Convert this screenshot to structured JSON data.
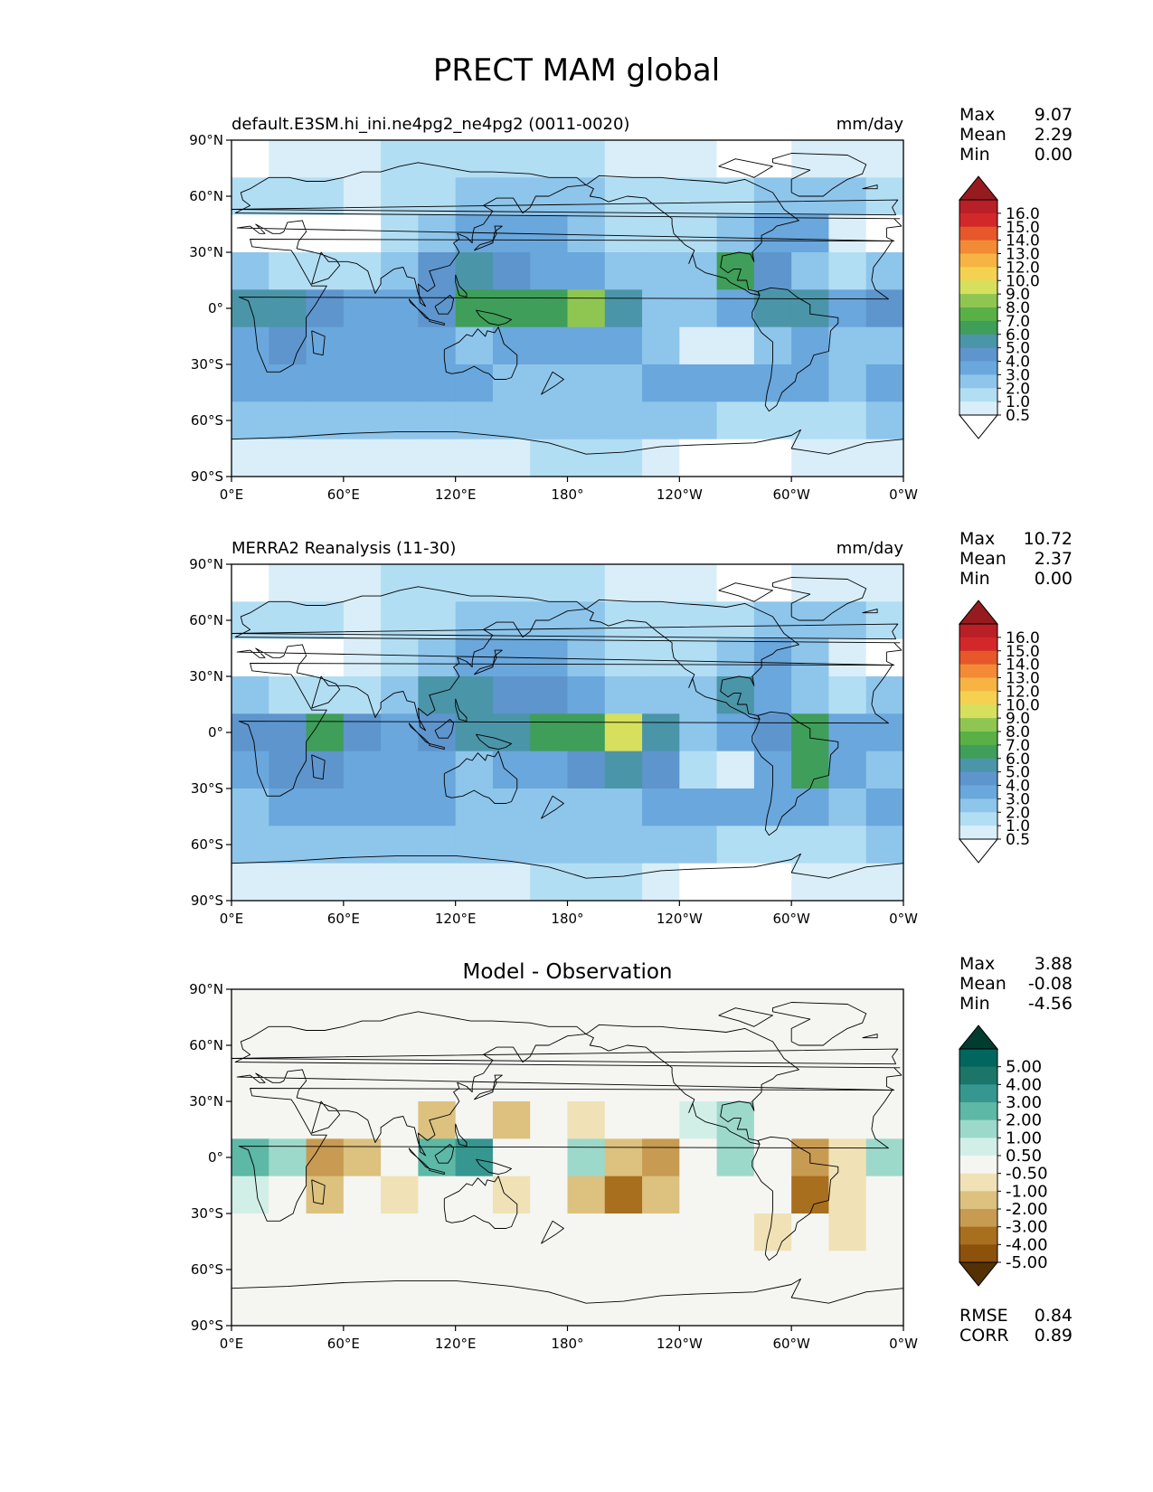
{
  "title": "PRECT MAM global",
  "lon_ticks": [
    "0°E",
    "60°E",
    "120°E",
    "180°",
    "120°W",
    "60°W",
    "0°W"
  ],
  "lat_ticks": [
    "90°N",
    "60°N",
    "30°N",
    "0°",
    "30°S",
    "60°S",
    "90°S"
  ],
  "stat_labels": {
    "max": "Max",
    "mean": "Mean",
    "min": "Min"
  },
  "colors": {
    "land_outline": "#000000",
    "prect_levels": [
      "#ffffff",
      "#d9eef9",
      "#b2def4",
      "#8ec5eb",
      "#6aa7dc",
      "#5e95cd",
      "#4b95a9",
      "#3f9e59",
      "#59b146",
      "#8fc651",
      "#d6e05d",
      "#f5d152",
      "#f7b344",
      "#f38b36",
      "#e6572a",
      "#d3282a",
      "#b91f26",
      "#961b1f"
    ],
    "diff_levels": [
      "#543005",
      "#8c510a",
      "#a86f1e",
      "#c89b52",
      "#dcc17f",
      "#f0e2b6",
      "#f5f5f2",
      "#d2efe7",
      "#9dd9cb",
      "#5db8a6",
      "#35978f",
      "#1b7569",
      "#01665e",
      "#003c30"
    ]
  },
  "panels": [
    {
      "id": "test",
      "label_left": "default.E3SM.hi_ini.ne4pg2_ne4pg2 (0011-0020)",
      "label_right": "mm/day",
      "stats": {
        "max": "9.07",
        "mean": "2.29",
        "min": "0.00"
      },
      "colorbar_labels": [
        "16.0",
        "15.0",
        "14.0",
        "13.0",
        "12.0",
        "10.0",
        "9.0",
        "8.0",
        "7.0",
        "6.0",
        "5.0",
        "4.0",
        "3.0",
        "2.0",
        "1.0",
        "0.5"
      ]
    },
    {
      "id": "ref",
      "label_left": "MERRA2 Reanalysis (11-30)",
      "label_right": "mm/day",
      "stats": {
        "max": "10.72",
        "mean": "2.37",
        "min": "0.00"
      },
      "colorbar_labels": [
        "16.0",
        "15.0",
        "14.0",
        "13.0",
        "12.0",
        "10.0",
        "9.0",
        "8.0",
        "7.0",
        "6.0",
        "5.0",
        "4.0",
        "3.0",
        "2.0",
        "1.0",
        "0.5"
      ]
    },
    {
      "id": "diff",
      "label_center": "Model - Observation",
      "stats": {
        "max": "3.88",
        "mean": "-0.08",
        "min": "-4.56"
      },
      "colorbar_labels": [
        "5.00",
        "4.00",
        "3.00",
        "2.00",
        "1.00",
        "0.50",
        "-0.50",
        "-1.00",
        "-2.00",
        "-3.00",
        "-4.00",
        "-5.00"
      ],
      "metrics": [
        {
          "label": "RMSE",
          "value": "0.84"
        },
        {
          "label": "CORR",
          "value": "0.89"
        }
      ]
    }
  ],
  "chart_data": [
    {
      "type": "heatmap",
      "title": "default.E3SM.hi_ini.ne4pg2_ne4pg2 (0011-0020)",
      "units": "mm/day",
      "xlim": [
        0,
        360
      ],
      "ylim": [
        -90,
        90
      ],
      "levels": [
        0.5,
        1,
        2,
        3,
        4,
        5,
        6,
        7,
        8,
        9,
        10,
        12,
        13,
        14,
        15,
        16
      ],
      "grid_step_deg": 20,
      "lat_centers": [
        80,
        60,
        40,
        20,
        0,
        -20,
        -40,
        -60,
        -80
      ],
      "lon_centers": [
        10,
        30,
        50,
        70,
        90,
        110,
        130,
        150,
        170,
        190,
        210,
        230,
        250,
        270,
        290,
        310,
        330,
        350
      ],
      "values": [
        [
          0.4,
          0.6,
          0.8,
          0.8,
          1.0,
          1.2,
          1.4,
          1.2,
          1.0,
          1.0,
          0.8,
          0.8,
          0.6,
          0.4,
          0.4,
          0.6,
          0.6,
          0.5
        ],
        [
          1.2,
          1.2,
          1.0,
          0.8,
          1.0,
          1.4,
          2.0,
          2.6,
          2.6,
          2.2,
          1.8,
          1.6,
          1.4,
          1.6,
          2.2,
          2.6,
          2.4,
          1.8
        ],
        [
          0.4,
          0.3,
          0.3,
          0.4,
          1.2,
          2.6,
          3.2,
          3.4,
          3.2,
          2.6,
          1.6,
          1.2,
          1.0,
          2.2,
          3.4,
          3.0,
          0.8,
          0.4
        ],
        [
          2.4,
          1.6,
          1.0,
          1.6,
          2.6,
          4.6,
          5.2,
          4.4,
          3.6,
          3.2,
          2.4,
          2.0,
          2.8,
          6.8,
          4.2,
          2.6,
          1.2,
          2.0
        ],
        [
          5.2,
          5.4,
          4.6,
          3.2,
          3.4,
          4.4,
          6.0,
          6.2,
          6.4,
          8.0,
          5.8,
          2.8,
          2.2,
          3.6,
          5.0,
          5.2,
          3.4,
          4.0
        ],
        [
          3.8,
          4.4,
          3.4,
          3.0,
          3.4,
          3.4,
          2.6,
          3.0,
          3.4,
          3.0,
          3.0,
          2.4,
          0.9,
          0.5,
          2.8,
          3.0,
          2.2,
          2.0
        ],
        [
          3.0,
          3.6,
          3.8,
          3.8,
          3.6,
          3.2,
          3.0,
          2.8,
          2.8,
          2.8,
          2.6,
          3.0,
          3.4,
          3.2,
          3.4,
          3.0,
          2.8,
          3.2
        ],
        [
          2.0,
          2.2,
          2.4,
          2.4,
          2.4,
          2.2,
          2.2,
          2.0,
          2.0,
          2.0,
          2.2,
          2.0,
          2.0,
          1.8,
          1.6,
          1.6,
          1.8,
          2.0
        ],
        [
          0.8,
          0.8,
          0.9,
          0.8,
          0.6,
          0.5,
          0.6,
          0.8,
          1.0,
          1.2,
          1.0,
          0.6,
          0.4,
          0.3,
          0.4,
          0.6,
          0.8,
          0.8
        ]
      ]
    },
    {
      "type": "heatmap",
      "title": "MERRA2 Reanalysis (11-30)",
      "units": "mm/day",
      "xlim": [
        0,
        360
      ],
      "ylim": [
        -90,
        90
      ],
      "levels": [
        0.5,
        1,
        2,
        3,
        4,
        5,
        6,
        7,
        8,
        9,
        10,
        12,
        13,
        14,
        15,
        16
      ],
      "grid_step_deg": 20,
      "lat_centers": [
        80,
        60,
        40,
        20,
        0,
        -20,
        -40,
        -60,
        -80
      ],
      "lon_centers": [
        10,
        30,
        50,
        70,
        90,
        110,
        130,
        150,
        170,
        190,
        210,
        230,
        250,
        270,
        290,
        310,
        330,
        350
      ],
      "values": [
        [
          0.4,
          0.6,
          0.8,
          0.8,
          1.0,
          1.2,
          1.4,
          1.2,
          1.0,
          1.0,
          0.8,
          0.8,
          0.6,
          0.4,
          0.4,
          0.6,
          0.6,
          0.5
        ],
        [
          1.2,
          1.2,
          1.0,
          0.8,
          1.0,
          1.4,
          2.2,
          2.8,
          2.6,
          2.2,
          1.8,
          1.6,
          1.4,
          1.6,
          2.2,
          2.6,
          2.2,
          1.6
        ],
        [
          0.4,
          0.3,
          0.3,
          0.5,
          1.4,
          2.4,
          3.2,
          3.4,
          3.2,
          2.6,
          1.6,
          1.2,
          1.0,
          2.2,
          3.4,
          2.8,
          0.8,
          0.4
        ],
        [
          2.2,
          1.4,
          1.0,
          1.4,
          2.2,
          5.0,
          5.4,
          4.6,
          4.0,
          3.0,
          2.4,
          2.0,
          2.0,
          5.0,
          3.8,
          2.6,
          1.6,
          2.0
        ],
        [
          4.2,
          4.6,
          6.0,
          4.0,
          3.4,
          4.6,
          5.0,
          5.4,
          6.2,
          6.6,
          9.4,
          5.6,
          2.4,
          3.2,
          4.6,
          6.6,
          3.6,
          3.4
        ],
        [
          3.4,
          4.0,
          4.6,
          3.4,
          3.2,
          3.0,
          2.6,
          3.2,
          3.8,
          4.6,
          5.6,
          4.2,
          1.2,
          0.6,
          3.2,
          6.6,
          3.0,
          2.0
        ],
        [
          2.8,
          3.4,
          3.6,
          3.6,
          3.4,
          3.0,
          2.8,
          2.8,
          2.8,
          2.8,
          2.8,
          3.2,
          3.4,
          3.2,
          3.4,
          3.0,
          2.8,
          3.0
        ],
        [
          2.0,
          2.2,
          2.4,
          2.4,
          2.4,
          2.2,
          2.2,
          2.0,
          2.0,
          2.0,
          2.2,
          2.0,
          2.0,
          1.8,
          1.6,
          1.6,
          1.8,
          2.0
        ],
        [
          0.8,
          0.8,
          0.9,
          0.8,
          0.6,
          0.5,
          0.6,
          0.8,
          1.0,
          1.2,
          1.0,
          0.6,
          0.4,
          0.3,
          0.4,
          0.6,
          0.8,
          0.8
        ]
      ]
    },
    {
      "type": "heatmap",
      "title": "Model - Observation",
      "units": "mm/day",
      "xlim": [
        0,
        360
      ],
      "ylim": [
        -90,
        90
      ],
      "levels": [
        -5,
        -4,
        -3,
        -2,
        -1,
        -0.5,
        0.5,
        1,
        2,
        3,
        4,
        5
      ],
      "grid_step_deg": 20,
      "lat_centers": [
        80,
        60,
        40,
        20,
        0,
        -20,
        -40,
        -60,
        -80
      ],
      "lon_centers": [
        10,
        30,
        50,
        70,
        90,
        110,
        130,
        150,
        170,
        190,
        210,
        230,
        250,
        270,
        290,
        310,
        330,
        350
      ],
      "values": [
        [
          0,
          0,
          0,
          0,
          0,
          0,
          0,
          0,
          0,
          0,
          0,
          0,
          0,
          0,
          0,
          0,
          0,
          0
        ],
        [
          0,
          0,
          0,
          0,
          0,
          0,
          0,
          0,
          0,
          0,
          0,
          0,
          0,
          0,
          0,
          0,
          0,
          0
        ],
        [
          0,
          0,
          0,
          0,
          0,
          0,
          0,
          0,
          0,
          0,
          0,
          0,
          0,
          0,
          0,
          0,
          0,
          0
        ],
        [
          0.2,
          0.2,
          0,
          0.2,
          0.4,
          -1.2,
          -0.2,
          -1.6,
          -0.4,
          -0.6,
          0,
          0,
          0.8,
          1.8,
          0.4,
          0,
          -0.4,
          0
        ],
        [
          2.4,
          1.0,
          -2.6,
          -1.2,
          0,
          2.8,
          3.0,
          0.2,
          0.2,
          1.6,
          -1.6,
          -2.6,
          0,
          1.8,
          0.4,
          -2.8,
          -0.8,
          1.0
        ],
        [
          0.8,
          0.4,
          -1.2,
          -0.4,
          -0.6,
          -0.2,
          0,
          -1.0,
          -0.4,
          -1.6,
          -3.6,
          -1.8,
          -0.3,
          0,
          -0.4,
          -3.4,
          -0.6,
          0
        ],
        [
          0,
          0,
          0,
          0,
          0,
          0,
          0,
          0,
          0,
          0,
          0,
          0,
          0,
          0,
          -0.8,
          0,
          -0.8,
          0
        ],
        [
          0,
          0,
          0,
          0,
          0,
          0,
          0,
          0,
          0,
          0,
          0,
          0,
          0,
          0,
          0,
          0,
          0,
          0
        ],
        [
          0,
          0,
          0,
          0,
          0,
          0,
          0,
          0,
          0,
          0,
          0,
          0,
          0,
          0,
          0,
          0,
          0,
          0
        ]
      ]
    }
  ]
}
